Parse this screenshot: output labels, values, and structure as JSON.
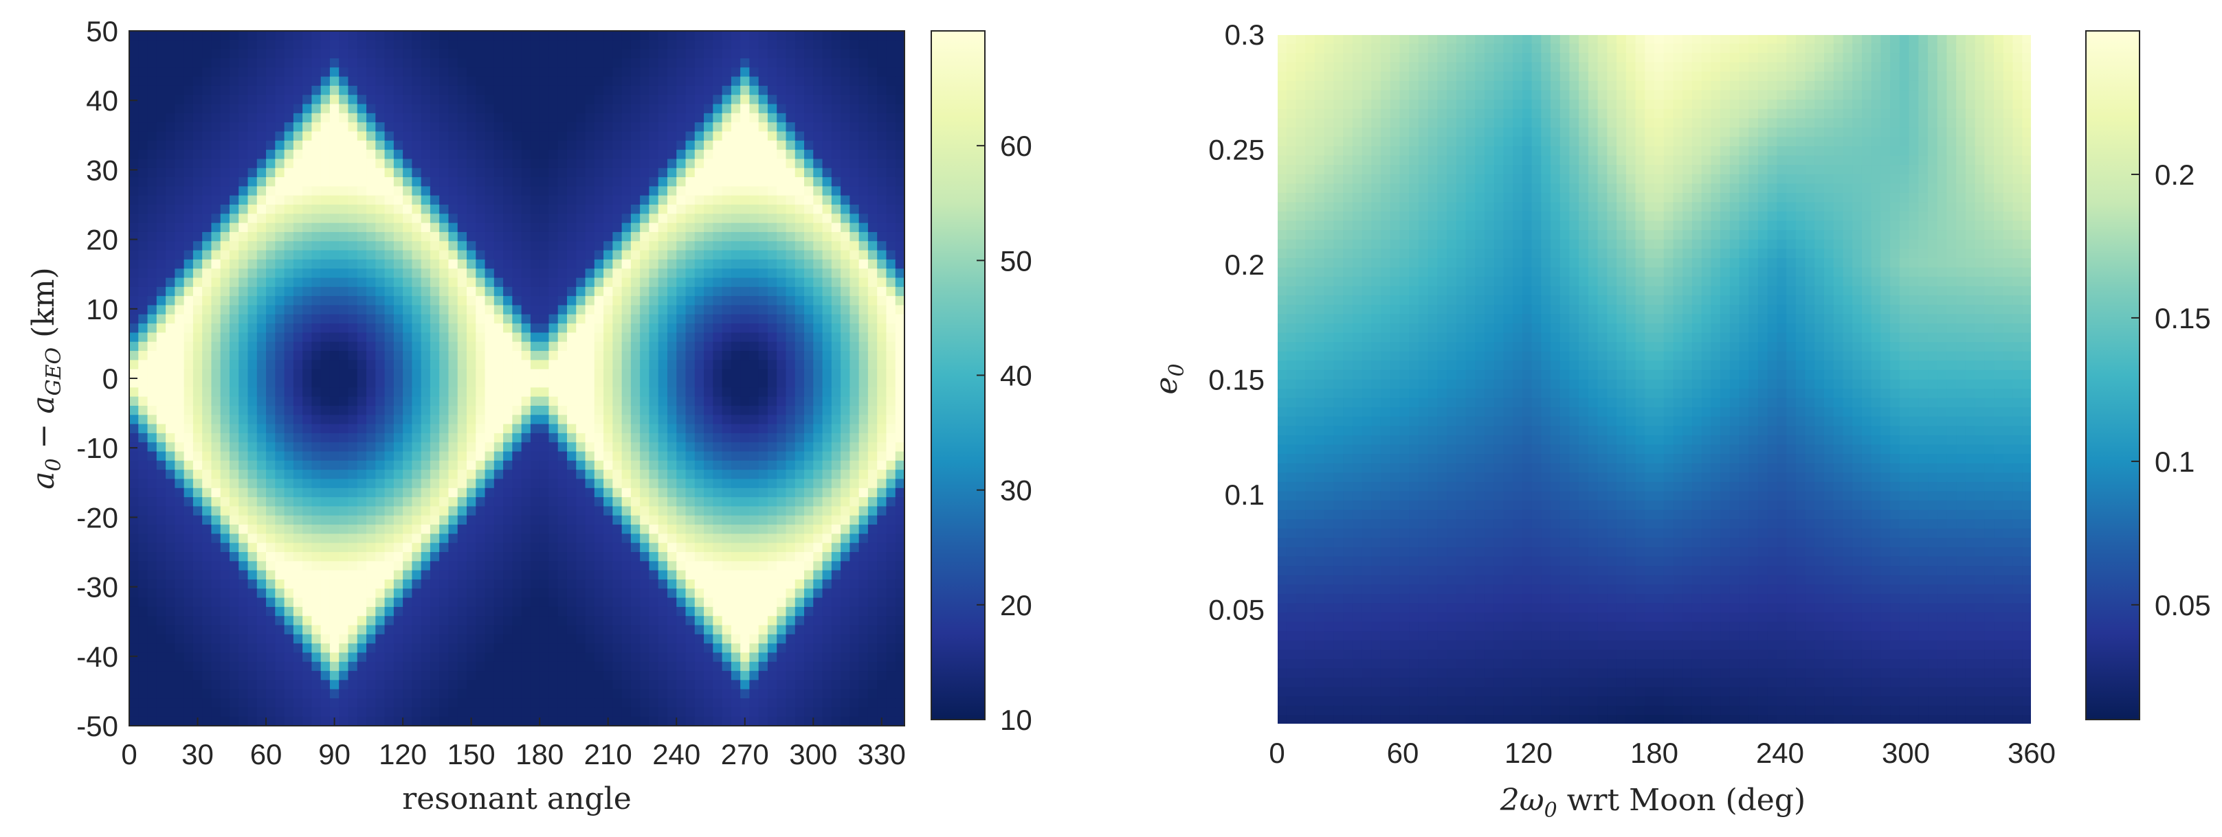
{
  "colors": {
    "colormap": [
      "#081d58",
      "#253494",
      "#225ea8",
      "#1d91c0",
      "#41b6c4",
      "#7fcdbb",
      "#c7e9b4",
      "#edf8b1",
      "#ffffd9"
    ],
    "axis": "#262626",
    "background": "#ffffff"
  },
  "chart_data": [
    {
      "type": "heatmap",
      "title": "",
      "xlabel": "resonant angle",
      "ylabel_parts": [
        "a",
        "0",
        " − a",
        "GEO",
        " (km)"
      ],
      "xlim": [
        0,
        340
      ],
      "ylim": [
        -50,
        50
      ],
      "x_ticks": [
        0,
        30,
        60,
        90,
        120,
        150,
        180,
        210,
        240,
        270,
        300,
        330
      ],
      "x_tick_labels": [
        "0",
        "30",
        "60",
        "90",
        "120",
        "150",
        "180",
        "210",
        "240",
        "270",
        "300",
        "330"
      ],
      "y_ticks": [
        50,
        40,
        30,
        20,
        10,
        0,
        -10,
        -20,
        -30,
        -40,
        -50
      ],
      "y_tick_labels": [
        "50",
        "40",
        "30",
        "20",
        "10",
        "0",
        "-10",
        "-20",
        "-30",
        "-40",
        "-50"
      ],
      "colorbar": {
        "range": [
          10,
          70
        ],
        "ticks": [
          60,
          50,
          40,
          30,
          20,
          10
        ],
        "tick_labels": [
          "60",
          "50",
          "40",
          "30",
          "20",
          "10"
        ]
      },
      "grid": false,
      "field": {
        "description_free": true,
        "pattern": "two resonance islands centred at resonant angle 90 and 270, a0-aGEO 0",
        "centers": [
          90,
          270
        ],
        "center_value": 10,
        "saturation_value": 70,
        "island_half_width_deg": 90,
        "island_half_height_km": 37,
        "outside_value": 12
      }
    },
    {
      "type": "heatmap",
      "title": "",
      "xlabel_parts": [
        "2ω",
        "0",
        " wrt Moon (deg)"
      ],
      "ylabel_parts": [
        "e",
        "0"
      ],
      "xlim": [
        0,
        360
      ],
      "ylim": [
        0,
        0.3
      ],
      "x_ticks": [
        0,
        60,
        120,
        180,
        240,
        300,
        360
      ],
      "x_tick_labels": [
        "0",
        "60",
        "120",
        "180",
        "240",
        "300",
        "360"
      ],
      "y_ticks": [
        0.3,
        0.25,
        0.2,
        0.15,
        0.1,
        0.05
      ],
      "y_tick_labels": [
        "0.3",
        "0.25",
        "0.2",
        "0.15",
        "0.1",
        "0.05"
      ],
      "colorbar": {
        "range": [
          0.01,
          0.25
        ],
        "ticks": [
          0.2,
          0.15,
          0.1,
          0.05
        ],
        "tick_labels": [
          "0.2",
          "0.15",
          "0.1",
          "0.05"
        ]
      },
      "grid": false,
      "field": {
        "pattern": "value grows with e0; valleys near 2w0 = 120 and 240, peaks near 0, 180, 300-360",
        "e_samples": [
          0.0,
          0.05,
          0.1,
          0.15,
          0.2,
          0.25,
          0.3
        ],
        "x_samples": [
          0,
          60,
          120,
          180,
          240,
          300,
          360
        ],
        "values": [
          [
            0.02,
            0.02,
            0.018,
            0.012,
            0.018,
            0.02,
            0.02
          ],
          [
            0.045,
            0.042,
            0.038,
            0.042,
            0.038,
            0.045,
            0.046
          ],
          [
            0.085,
            0.075,
            0.062,
            0.082,
            0.062,
            0.085,
            0.088
          ],
          [
            0.125,
            0.108,
            0.085,
            0.125,
            0.088,
            0.128,
            0.13
          ],
          [
            0.165,
            0.14,
            0.105,
            0.17,
            0.11,
            0.165,
            0.175
          ],
          [
            0.205,
            0.165,
            0.12,
            0.215,
            0.16,
            0.15,
            0.215
          ],
          [
            0.235,
            0.19,
            0.15,
            0.248,
            0.22,
            0.15,
            0.245
          ]
        ]
      }
    }
  ]
}
